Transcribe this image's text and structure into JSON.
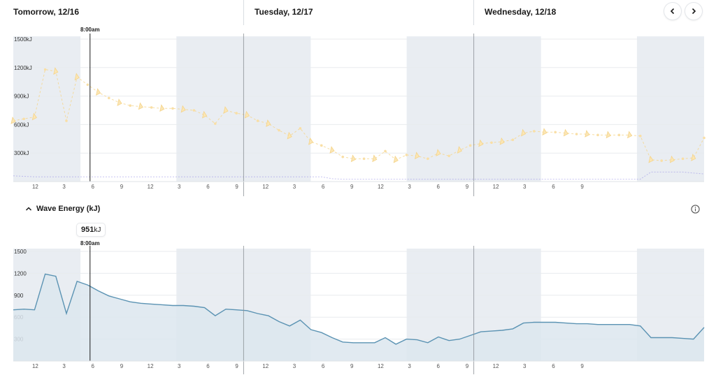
{
  "header": {
    "days": [
      {
        "label": "Tomorrow, 12/16"
      },
      {
        "label": "Tuesday, 12/17"
      },
      {
        "label": "Wednesday, 12/18"
      }
    ],
    "prev_icon": "chevron-left-icon",
    "next_icon": "chevron-right-icon"
  },
  "cursor": {
    "time_label": "8:00am",
    "value": "951",
    "unit": "kJ"
  },
  "wave_section": {
    "title": "Wave Energy (kJ)",
    "collapse_icon": "chevron-up-icon",
    "info_icon": "info-icon"
  },
  "chart_data": [
    {
      "type": "line",
      "ylim": [
        0,
        1500
      ],
      "y_ticks": [
        "1500kJ",
        "1200kJ",
        "900kJ",
        "600kJ",
        "300kJ"
      ],
      "y_tick_values": [
        1500,
        1200,
        900,
        600,
        300
      ],
      "x_tick_labels": [
        "12",
        "3",
        "6",
        "9",
        "12",
        "3",
        "6",
        "9",
        "12",
        "3",
        "6",
        "9",
        "12",
        "3",
        "6",
        "9",
        "12",
        "3",
        "6",
        "9"
      ],
      "series": [
        {
          "color": "#f5d48a",
          "values": [
            640,
            660,
            680,
            1180,
            1160,
            640,
            1100,
            1020,
            940,
            880,
            830,
            800,
            790,
            780,
            770,
            770,
            760,
            750,
            700,
            610,
            750,
            720,
            700,
            640,
            610,
            540,
            480,
            560,
            420,
            380,
            330,
            260,
            240,
            240,
            240,
            320,
            230,
            280,
            270,
            240,
            300,
            270,
            330,
            380,
            400,
            410,
            420,
            440,
            510,
            530,
            520,
            520,
            510,
            500,
            500,
            490,
            490,
            490,
            490,
            480,
            230,
            220,
            230,
            240,
            250,
            460
          ]
        },
        {
          "color": "#8f87e6",
          "values": [
            60,
            55,
            50,
            50,
            50,
            50,
            50,
            50,
            50,
            50,
            50,
            50,
            50,
            50,
            50,
            50,
            50,
            50,
            50,
            50,
            50,
            50,
            50,
            50,
            50,
            50,
            50,
            50,
            50,
            50,
            30,
            25,
            25,
            25,
            25,
            25,
            25,
            25,
            25,
            25,
            25,
            25,
            25,
            25,
            25,
            25,
            25,
            25,
            25,
            25,
            25,
            25,
            25,
            25,
            25,
            25,
            25,
            25,
            25,
            25,
            100,
            100,
            100,
            100,
            90,
            80
          ]
        }
      ]
    },
    {
      "type": "area",
      "title": "Wave Energy (kJ)",
      "ylim": [
        0,
        1500
      ],
      "y_ticks": [
        "1500",
        "1200",
        "900",
        "600",
        "300"
      ],
      "y_tick_values": [
        1500,
        1200,
        900,
        600,
        300
      ],
      "x_tick_labels": [
        "12",
        "3",
        "6",
        "9",
        "12",
        "3",
        "6",
        "9",
        "12",
        "3",
        "6",
        "9",
        "12",
        "3",
        "6",
        "9",
        "12",
        "3",
        "6",
        "9"
      ],
      "series": [
        {
          "color": "#5b93b3",
          "values": [
            700,
            710,
            700,
            1190,
            1160,
            650,
            1090,
            1040,
            960,
            890,
            850,
            810,
            790,
            780,
            770,
            760,
            760,
            750,
            730,
            620,
            710,
            700,
            690,
            650,
            620,
            540,
            480,
            560,
            430,
            390,
            320,
            260,
            250,
            250,
            250,
            320,
            230,
            300,
            290,
            250,
            330,
            280,
            300,
            350,
            400,
            410,
            420,
            440,
            520,
            530,
            530,
            530,
            520,
            510,
            510,
            500,
            500,
            500,
            500,
            480,
            320,
            320,
            320,
            310,
            300,
            460
          ]
        }
      ]
    }
  ]
}
